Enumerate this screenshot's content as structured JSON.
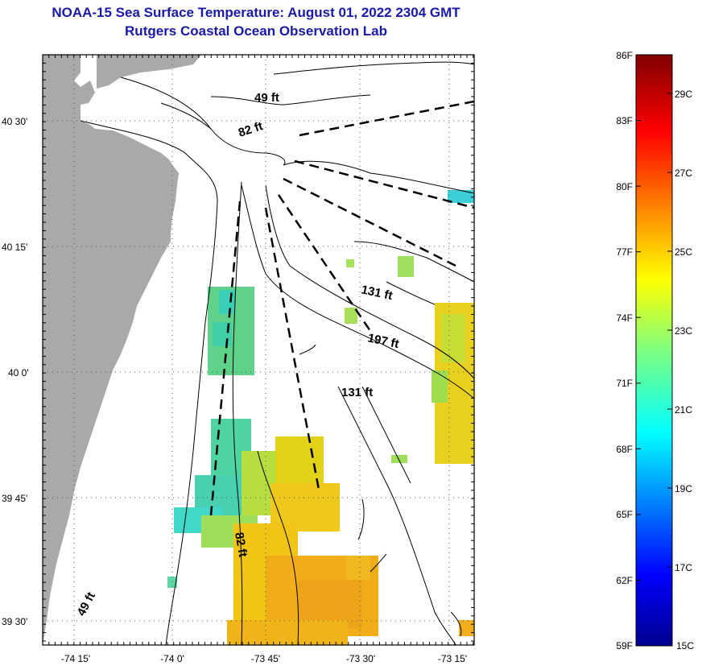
{
  "header": {
    "title_line1": "NOAA-15 Sea Surface Temperature:  August 01, 2022 2304 GMT",
    "title_line2": "Rutgers Coastal Ocean Observation Lab"
  },
  "map": {
    "lon_ticks": [
      "-74 15'",
      "-74 0'",
      "-73 45'",
      "-73 30'",
      "-73 15'"
    ],
    "lat_ticks": [
      "40 30'",
      "40 15'",
      "40 0'",
      "39 45'",
      "39 30'"
    ],
    "depth_labels": [
      "49 ft",
      "82 ft",
      "131 ft",
      "197 ft",
      "131 ft",
      "82 ft",
      "49 ft"
    ],
    "colors": {
      "land": "#a9a9a9",
      "contour": "#000000",
      "transect": "#000000"
    }
  },
  "colorbar": {
    "fahrenheit_labels": [
      "86F",
      "83F",
      "80F",
      "77F",
      "74F",
      "71F",
      "68F",
      "65F",
      "62F",
      "59F"
    ],
    "celsius_labels": [
      "29C",
      "27C",
      "25C",
      "23C",
      "21C",
      "19C",
      "17C",
      "15C"
    ],
    "range_f": [
      59,
      86
    ],
    "colormap": "jet"
  }
}
